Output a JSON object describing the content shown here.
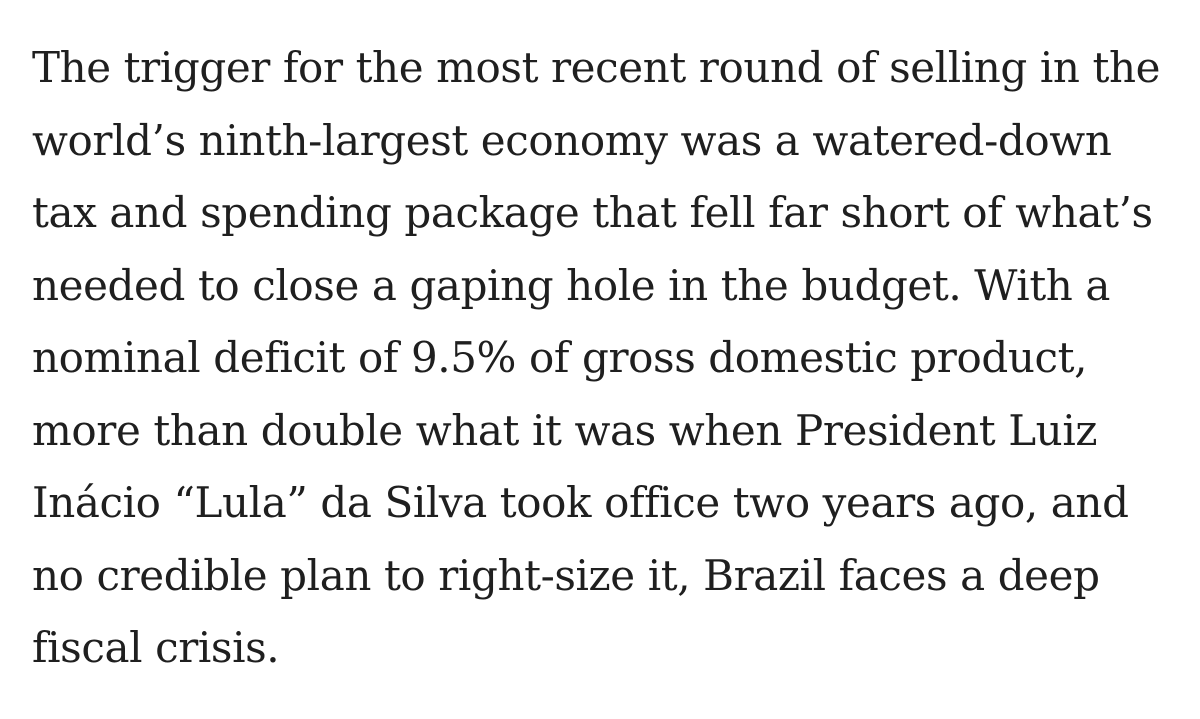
{
  "article": {
    "paragraph_lines": [
      "The trigger for the most recent round of selling in the",
      "world’s ninth-largest economy was a watered-down",
      "tax and spending package that fell far short of what’s",
      "needed to close a gaping hole in the budget. With a",
      "nominal deficit of 9.5% of gross domestic product,",
      "more than double what it was when President Luiz",
      "Inácio “Lula” da Silva took office two years ago, and",
      "no credible plan to right-size it, Brazil faces a deep",
      "fiscal crisis."
    ],
    "colors": {
      "text": "#1f1f1f",
      "background": "#ffffff"
    }
  }
}
